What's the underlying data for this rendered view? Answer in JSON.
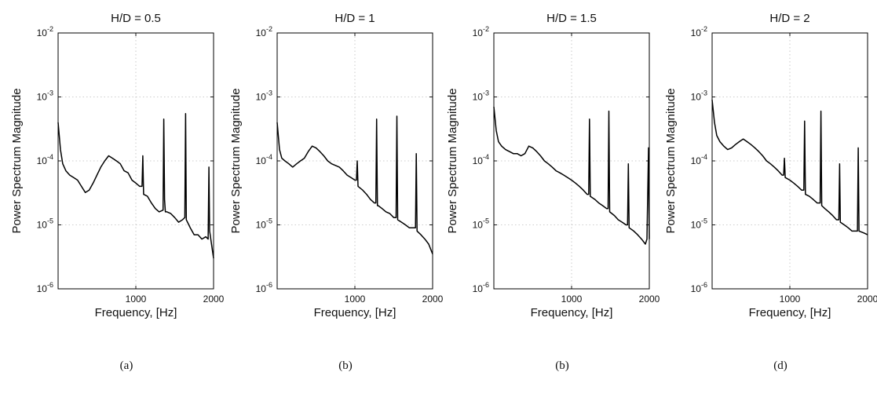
{
  "chart_data": [
    {
      "type": "line",
      "title": "H/D = 0.5",
      "xlabel": "Frequency, [Hz]",
      "ylabel": "Power Spectrum Magnitude",
      "xlim": [
        0,
        2000
      ],
      "ylim": [
        1e-06,
        0.01
      ],
      "yscale": "log",
      "grid": true,
      "xticks": [
        1000,
        2000
      ],
      "xtick_labels": [
        "1000",
        "2000"
      ],
      "yticks": [
        1e-06,
        1e-05,
        0.0001,
        0.001,
        0.01
      ],
      "ytick_labels": [
        {
          "base": "10",
          "exp": "-6"
        },
        {
          "base": "10",
          "exp": "-5"
        },
        {
          "base": "10",
          "exp": "-4"
        },
        {
          "base": "10",
          "exp": "-3"
        },
        {
          "base": "10",
          "exp": "-2"
        }
      ],
      "panel_label": "(a)",
      "x": [
        0,
        30,
        60,
        100,
        150,
        200,
        250,
        300,
        350,
        400,
        450,
        500,
        550,
        600,
        650,
        700,
        750,
        800,
        850,
        900,
        950,
        1000,
        1050,
        1080,
        1090,
        1100,
        1150,
        1200,
        1250,
        1300,
        1350,
        1360,
        1370,
        1380,
        1400,
        1450,
        1500,
        1550,
        1600,
        1630,
        1640,
        1650,
        1700,
        1750,
        1800,
        1850,
        1900,
        1930,
        1940,
        1950,
        2000
      ],
      "y": [
        0.0004,
        0.00015,
        9e-05,
        7e-05,
        6e-05,
        5.5e-05,
        5e-05,
        4e-05,
        3.2e-05,
        3.5e-05,
        4.5e-05,
        6e-05,
        8e-05,
        0.0001,
        0.00012,
        0.00011,
        0.0001,
        9e-05,
        7e-05,
        6.5e-05,
        5e-05,
        4.5e-05,
        4e-05,
        4e-05,
        0.00012,
        3e-05,
        2.8e-05,
        2.2e-05,
        1.8e-05,
        1.6e-05,
        1.7e-05,
        0.00045,
        2.5e-05,
        1.6e-05,
        1.6e-05,
        1.5e-05,
        1.3e-05,
        1.1e-05,
        1.2e-05,
        1.3e-05,
        0.00055,
        1.2e-05,
        9e-06,
        7e-06,
        7e-06,
        6e-06,
        6.5e-06,
        6e-06,
        8e-05,
        8e-06,
        3e-06
      ]
    },
    {
      "type": "line",
      "title": "H/D = 1",
      "xlabel": "Frequency, [Hz]",
      "ylabel": "Power Spectrum Magnitude",
      "xlim": [
        0,
        2000
      ],
      "ylim": [
        1e-06,
        0.01
      ],
      "yscale": "log",
      "grid": true,
      "xticks": [
        1000,
        2000
      ],
      "xtick_labels": [
        "1000",
        "2000"
      ],
      "yticks": [
        1e-06,
        1e-05,
        0.0001,
        0.001,
        0.01
      ],
      "ytick_labels": [
        {
          "base": "10",
          "exp": "-6"
        },
        {
          "base": "10",
          "exp": "-5"
        },
        {
          "base": "10",
          "exp": "-4"
        },
        {
          "base": "10",
          "exp": "-3"
        },
        {
          "base": "10",
          "exp": "-2"
        }
      ],
      "panel_label": "(b)",
      "x": [
        0,
        30,
        60,
        100,
        150,
        200,
        250,
        300,
        350,
        400,
        450,
        500,
        550,
        600,
        650,
        700,
        750,
        800,
        850,
        900,
        950,
        1000,
        1020,
        1030,
        1040,
        1100,
        1150,
        1200,
        1250,
        1270,
        1280,
        1290,
        1300,
        1350,
        1400,
        1450,
        1500,
        1530,
        1540,
        1550,
        1600,
        1650,
        1700,
        1750,
        1780,
        1790,
        1800,
        1850,
        1900,
        1950,
        2000
      ],
      "y": [
        0.0004,
        0.00015,
        0.00011,
        0.0001,
        9e-05,
        8e-05,
        9e-05,
        0.0001,
        0.00011,
        0.00014,
        0.00017,
        0.00016,
        0.00014,
        0.00012,
        0.0001,
        9e-05,
        8.5e-05,
        8e-05,
        7e-05,
        6e-05,
        5.5e-05,
        5e-05,
        5e-05,
        0.0001,
        4e-05,
        3.5e-05,
        3e-05,
        2.5e-05,
        2.2e-05,
        2.2e-05,
        0.00045,
        2e-05,
        2e-05,
        1.8e-05,
        1.6e-05,
        1.5e-05,
        1.3e-05,
        1.3e-05,
        0.0005,
        1.2e-05,
        1.1e-05,
        1e-05,
        9e-06,
        9e-06,
        9e-06,
        0.00013,
        8e-06,
        7e-06,
        6e-06,
        5e-06,
        3.5e-06
      ]
    },
    {
      "type": "line",
      "title": "H/D = 1.5",
      "xlabel": "Frequency, [Hz]",
      "ylabel": "Power Spectrum Magnitude",
      "xlim": [
        0,
        2000
      ],
      "ylim": [
        1e-06,
        0.01
      ],
      "yscale": "log",
      "grid": true,
      "xticks": [
        1000,
        2000
      ],
      "xtick_labels": [
        "1000",
        "2000"
      ],
      "yticks": [
        1e-06,
        1e-05,
        0.0001,
        0.001,
        0.01
      ],
      "ytick_labels": [
        {
          "base": "10",
          "exp": "-6"
        },
        {
          "base": "10",
          "exp": "-5"
        },
        {
          "base": "10",
          "exp": "-4"
        },
        {
          "base": "10",
          "exp": "-3"
        },
        {
          "base": "10",
          "exp": "-2"
        }
      ],
      "panel_label": "(b)",
      "x": [
        0,
        30,
        60,
        100,
        150,
        200,
        250,
        300,
        350,
        400,
        450,
        500,
        550,
        600,
        650,
        700,
        750,
        800,
        850,
        900,
        950,
        1000,
        1050,
        1100,
        1150,
        1200,
        1220,
        1230,
        1240,
        1300,
        1350,
        1400,
        1450,
        1470,
        1480,
        1490,
        1550,
        1600,
        1650,
        1700,
        1720,
        1730,
        1740,
        1800,
        1850,
        1900,
        1950,
        1970,
        1990,
        2000
      ],
      "y": [
        0.0007,
        0.0003,
        0.0002,
        0.00017,
        0.00015,
        0.00014,
        0.00013,
        0.00013,
        0.00012,
        0.00013,
        0.00017,
        0.00016,
        0.00014,
        0.00012,
        0.0001,
        9e-05,
        8e-05,
        7e-05,
        6.5e-05,
        6e-05,
        5.5e-05,
        5e-05,
        4.5e-05,
        4e-05,
        3.5e-05,
        3e-05,
        3e-05,
        0.00045,
        2.8e-05,
        2.5e-05,
        2.2e-05,
        2e-05,
        1.8e-05,
        1.8e-05,
        0.0006,
        1.6e-05,
        1.4e-05,
        1.2e-05,
        1.1e-05,
        1e-05,
        1e-05,
        9e-05,
        9e-06,
        8e-06,
        7e-06,
        6e-06,
        5e-06,
        6e-06,
        0.00016,
        6e-06
      ]
    },
    {
      "type": "line",
      "title": "H/D = 2",
      "xlabel": "Frequency, [Hz]",
      "ylabel": "Power Spectrum Magnitude",
      "xlim": [
        0,
        2000
      ],
      "ylim": [
        1e-06,
        0.01
      ],
      "yscale": "log",
      "grid": true,
      "xticks": [
        1000,
        2000
      ],
      "xtick_labels": [
        "1000",
        "2000"
      ],
      "yticks": [
        1e-06,
        1e-05,
        0.0001,
        0.001,
        0.01
      ],
      "ytick_labels": [
        {
          "base": "10",
          "exp": "-6"
        },
        {
          "base": "10",
          "exp": "-5"
        },
        {
          "base": "10",
          "exp": "-4"
        },
        {
          "base": "10",
          "exp": "-3"
        },
        {
          "base": "10",
          "exp": "-2"
        }
      ],
      "panel_label": "(d)",
      "x": [
        0,
        30,
        60,
        100,
        150,
        200,
        250,
        300,
        350,
        400,
        450,
        500,
        550,
        600,
        650,
        700,
        750,
        800,
        850,
        900,
        920,
        930,
        940,
        1000,
        1050,
        1100,
        1150,
        1180,
        1190,
        1200,
        1250,
        1300,
        1350,
        1390,
        1400,
        1410,
        1450,
        1500,
        1550,
        1600,
        1630,
        1640,
        1650,
        1700,
        1750,
        1800,
        1850,
        1870,
        1880,
        1890,
        1950,
        2000
      ],
      "y": [
        0.0009,
        0.0004,
        0.00025,
        0.0002,
        0.00017,
        0.00015,
        0.00016,
        0.00018,
        0.0002,
        0.00022,
        0.0002,
        0.00018,
        0.00016,
        0.00014,
        0.00012,
        0.0001,
        9e-05,
        8e-05,
        7e-05,
        6e-05,
        6e-05,
        0.00011,
        5.5e-05,
        5e-05,
        4.5e-05,
        4e-05,
        3.5e-05,
        3.5e-05,
        0.00042,
        3e-05,
        2.8e-05,
        2.5e-05,
        2.2e-05,
        2.2e-05,
        0.0006,
        2e-05,
        1.8e-05,
        1.6e-05,
        1.4e-05,
        1.2e-05,
        1.2e-05,
        9e-05,
        1.1e-05,
        1e-05,
        9e-06,
        8e-06,
        8e-06,
        8e-06,
        0.00016,
        8e-06,
        7.5e-06,
        7e-06
      ]
    }
  ]
}
